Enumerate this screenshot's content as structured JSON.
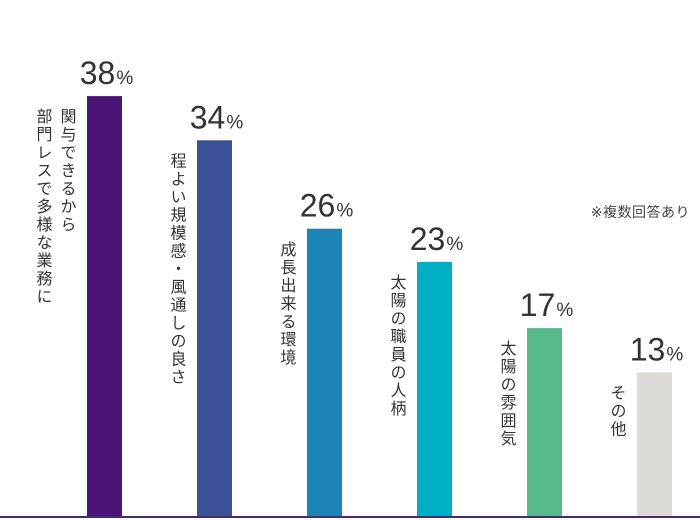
{
  "note": "※複数回答あり",
  "unit": "%",
  "colors": {
    "baseline": "#4a2a70",
    "label_text": "#333333",
    "value_text": "#333333"
  },
  "chart_data": {
    "type": "bar",
    "categories": [
      "部門レスで多様な業務に関与できるから",
      "程よい規模感・風通しの良さ",
      "成長出来る環境",
      "太陽の職員の人柄",
      "太陽の雰囲気",
      "その他"
    ],
    "label_lines": [
      [
        "部門レスで多様な業務に",
        "関与できるから"
      ],
      [
        "程よい規模感・風通しの良さ"
      ],
      [
        "成長出来る環境"
      ],
      [
        "太陽の職員の人柄"
      ],
      [
        "太陽の雰囲気"
      ],
      [
        "その他"
      ]
    ],
    "values": [
      38,
      34,
      26,
      23,
      17,
      13
    ],
    "colors": [
      "#4b1477",
      "#3a5196",
      "#1b86b6",
      "#00afc5",
      "#55ba88",
      "#dedad6"
    ],
    "ylim": [
      0,
      40
    ],
    "grid": false,
    "legend": "none"
  }
}
